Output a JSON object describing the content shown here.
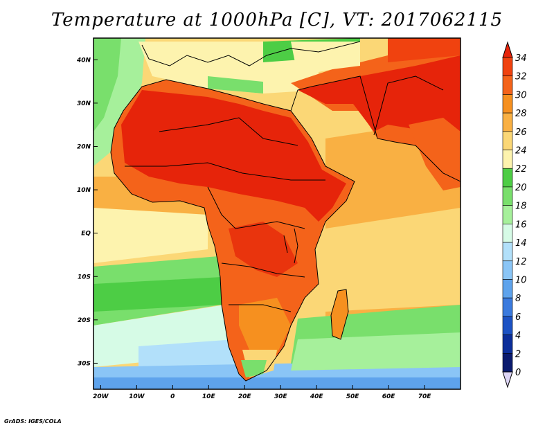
{
  "title": "Temperature at 1000hPa [C], VT: 2017062115",
  "credit": "GrADS: IGES/COLA",
  "map": {
    "lon_range": [
      -22,
      80
    ],
    "lat_range": [
      -36,
      45
    ],
    "lon_ticks": [
      "20W",
      "10W",
      "0",
      "10E",
      "20E",
      "30E",
      "40E",
      "50E",
      "60E",
      "70E"
    ],
    "lat_ticks": [
      "40N",
      "30N",
      "20N",
      "10N",
      "EQ",
      "10S",
      "20S",
      "30S"
    ],
    "colorbar": {
      "levels": [
        "34",
        "32",
        "30",
        "28",
        "26",
        "24",
        "22",
        "20",
        "18",
        "16",
        "14",
        "12",
        "10",
        "8",
        "6",
        "4",
        "2",
        "0"
      ],
      "colors": [
        "#e6240a",
        "#f0420f",
        "#f4631a",
        "#f6901f",
        "#f9b043",
        "#fbd776",
        "#fdf3ae",
        "#4dcd45",
        "#79df6c",
        "#a6f09b",
        "#d6fbe6",
        "#b2e0fa",
        "#8ac5f6",
        "#5ea3ec",
        "#3a7ade",
        "#1c52c4",
        "#0c2e9a",
        "#0a1a6e",
        "#dcd4f5"
      ]
    }
  }
}
